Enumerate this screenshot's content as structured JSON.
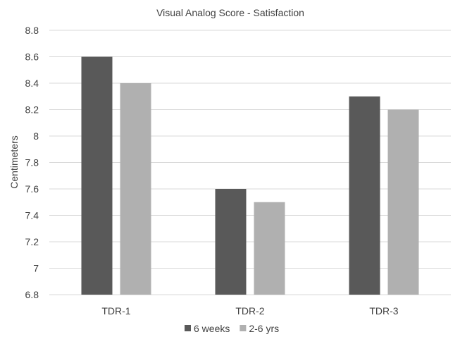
{
  "chart_data": {
    "type": "bar",
    "title": "Visual Analog Score - Satisfaction",
    "xlabel": "",
    "ylabel": "Centimeters",
    "categories": [
      "TDR-1",
      "TDR-2",
      "TDR-3"
    ],
    "series": [
      {
        "name": "6 weeks",
        "values": [
          8.6,
          7.6,
          8.3
        ],
        "color": "#595959"
      },
      {
        "name": "2-6 yrs",
        "values": [
          8.4,
          7.5,
          8.2
        ],
        "color": "#b0b0b0"
      }
    ],
    "ylim": [
      6.8,
      8.8
    ],
    "yticks": [
      "6.8",
      "7",
      "7.2",
      "7.4",
      "7.6",
      "7.8",
      "8",
      "8.2",
      "8.4",
      "8.6",
      "8.8"
    ],
    "grid": true,
    "legend": "bottom",
    "gridline_color": "#d9d9d9"
  }
}
